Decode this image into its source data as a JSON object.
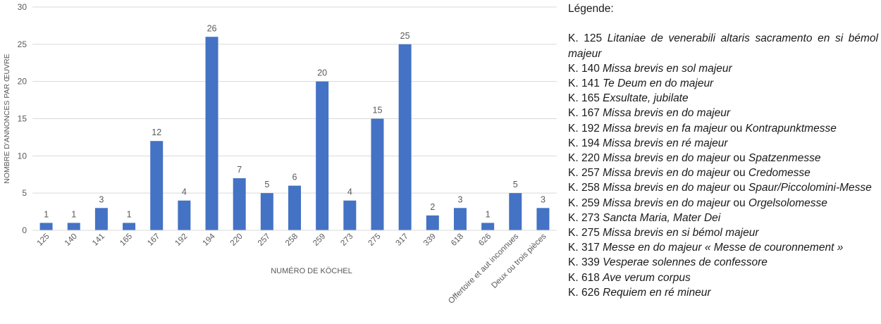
{
  "chart_data": {
    "type": "bar",
    "categories": [
      "125",
      "140",
      "141",
      "165",
      "167",
      "192",
      "194",
      "220",
      "257",
      "258",
      "259",
      "273",
      "275",
      "317",
      "339",
      "618",
      "626",
      "Offertoire et aut inconnues",
      "Deux ou trois pièces"
    ],
    "values": [
      1,
      1,
      3,
      1,
      12,
      4,
      26,
      7,
      5,
      6,
      20,
      4,
      15,
      25,
      2,
      3,
      1,
      5,
      3
    ],
    "ylim": [
      0,
      30
    ],
    "yticks": [
      0,
      5,
      10,
      15,
      20,
      25,
      30
    ],
    "xlabel": "NUMÉRO DE KÖCHEL",
    "ylabel": "NOMBRE D'ANNONCES PAR ŒUVRE",
    "bar_color": "#4472c4",
    "grid": "horizontal",
    "legend_placement": "right"
  },
  "legend": {
    "title": "Légende:",
    "items": [
      {
        "prefix": "K. 125 ",
        "title": "Litaniae de venerabili altaris sacramento en si bémol majeur",
        "conj": "",
        "alt": ""
      },
      {
        "prefix": "K. 140 ",
        "title": "Missa brevis en sol majeur",
        "conj": "",
        "alt": ""
      },
      {
        "prefix": "K. 141 ",
        "title": "Te Deum en do majeur",
        "conj": "",
        "alt": ""
      },
      {
        "prefix": "K. 165 ",
        "title": "Exsultate, jubilate",
        "conj": "",
        "alt": ""
      },
      {
        "prefix": "K. 167 ",
        "title": "Missa brevis en do majeur",
        "conj": "",
        "alt": ""
      },
      {
        "prefix": "K. 192 ",
        "title": "Missa brevis en fa majeur",
        "conj": " ou ",
        "alt": "Kontrapunktmesse"
      },
      {
        "prefix": "K. 194 ",
        "title": "Missa brevis en ré majeur",
        "conj": "",
        "alt": ""
      },
      {
        "prefix": "K. 220 ",
        "title": "Missa brevis en do majeur",
        "conj": " ou ",
        "alt": "Spatzenmesse"
      },
      {
        "prefix": "K. 257 ",
        "title": "Missa brevis en do majeur",
        "conj": " ou ",
        "alt": "Credomesse"
      },
      {
        "prefix": "K. 258 ",
        "title": "Missa brevis en do majeur",
        "conj": " ou ",
        "alt": "Spaur/Piccolomini-Messe"
      },
      {
        "prefix": "K. 259 ",
        "title": "Missa brevis en do majeur",
        "conj": " ou ",
        "alt": "Orgelsolomesse"
      },
      {
        "prefix": "K. 273 ",
        "title": "Sancta Maria, Mater Dei",
        "conj": "",
        "alt": ""
      },
      {
        "prefix": "K. 275 ",
        "title": "Missa brevis en si bémol majeur",
        "conj": "",
        "alt": ""
      },
      {
        "prefix": "K. 317 ",
        "title": "Messe en do majeur « Messe de couronnement »",
        "conj": "",
        "alt": ""
      },
      {
        "prefix": "K. 339 ",
        "title": "Vesperae solennes de confessore",
        "conj": "",
        "alt": ""
      },
      {
        "prefix": "K. 618 ",
        "title": "Ave verum corpus",
        "conj": "",
        "alt": ""
      },
      {
        "prefix": "K. 626 ",
        "title": "Requiem en ré mineur",
        "conj": "",
        "alt": ""
      }
    ]
  }
}
